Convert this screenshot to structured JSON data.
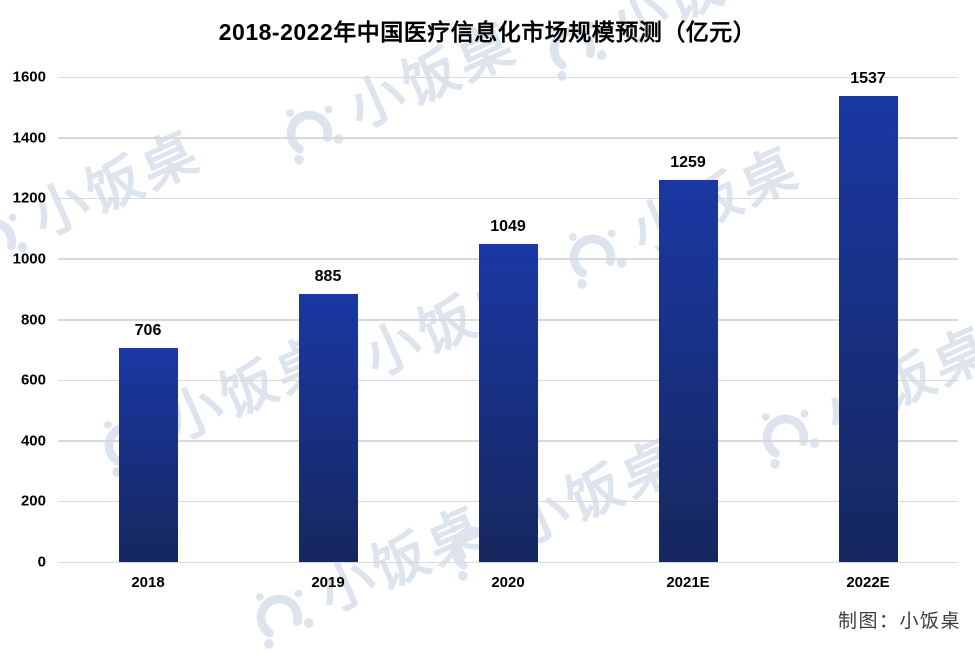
{
  "title": "2018-2022年中国医疗信息化市场规模预测（亿元）",
  "credit": "制图：小饭桌",
  "watermark": {
    "text": "小饭桌",
    "logo": "xiaofanzhuo-gear-logo"
  },
  "colors": {
    "background": "#FFFFFF",
    "text": "#000000",
    "bar_top": "#1A38A4",
    "bar_bottom": "#16275E",
    "gridline": "#D9D9D9",
    "credit_text": "#3D3D3D",
    "watermark": "#DEE4EE"
  },
  "chart_data": {
    "type": "bar",
    "title": "2018-2022年中国医疗信息化市场规模预测（亿元）",
    "unit": "亿元",
    "categories": [
      "2018",
      "2019",
      "2020",
      "2021E",
      "2022E"
    ],
    "values": [
      706,
      885,
      1049,
      1259,
      1537
    ],
    "xlabel": "",
    "ylabel": "",
    "ylim": [
      0,
      1600
    ],
    "yticks": [
      0,
      200,
      400,
      600,
      800,
      1000,
      1200,
      1400,
      1600
    ],
    "grid": true,
    "legend": false,
    "data_labels": true
  }
}
